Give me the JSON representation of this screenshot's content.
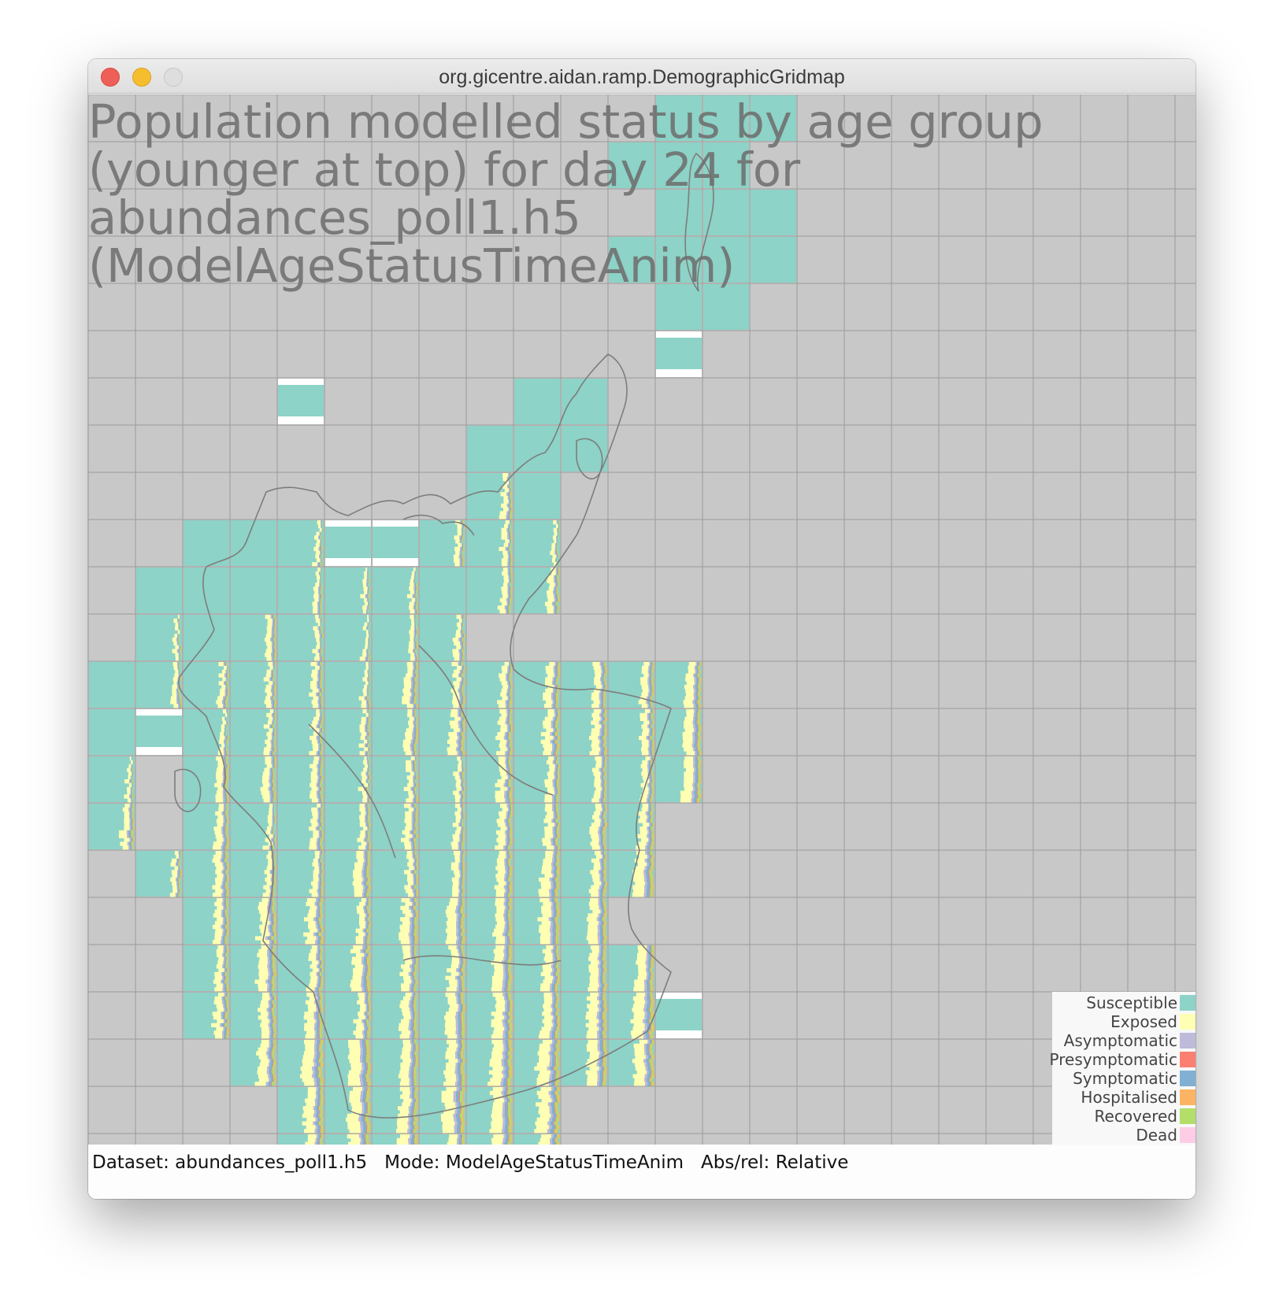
{
  "window": {
    "title": "org.gicentre.aidan.ramp.DemographicGridmap"
  },
  "chart": {
    "title": "Population modelled status by age group (younger at top) for day 24 for abundances_poll1.h5 (ModelAgeStatusTimeAnim)",
    "background_color": "#c8c8c8",
    "legend": [
      {
        "label": "Susceptible",
        "color": "#8dd3c7"
      },
      {
        "label": "Exposed",
        "color": "#ffffb3"
      },
      {
        "label": "Asymptomatic",
        "color": "#bebada"
      },
      {
        "label": "Presymptomatic",
        "color": "#fb8072"
      },
      {
        "label": "Symptomatic",
        "color": "#80b1d3"
      },
      {
        "label": "Hospitalised",
        "color": "#fdb462"
      },
      {
        "label": "Recovered",
        "color": "#b3de69"
      },
      {
        "label": "Dead",
        "color": "#fccde5"
      }
    ]
  },
  "chart_data": {
    "type": "heatmap",
    "grid_columns": 23,
    "grid_rows": 22,
    "populated_cells": [
      [
        0,
        12
      ],
      [
        0,
        13
      ],
      [
        0,
        14
      ],
      [
        1,
        11
      ],
      [
        1,
        12
      ],
      [
        1,
        13
      ],
      [
        2,
        12
      ],
      [
        2,
        13
      ],
      [
        2,
        14
      ],
      [
        3,
        11
      ],
      [
        3,
        12
      ],
      [
        3,
        13
      ],
      [
        3,
        14
      ],
      [
        4,
        12
      ],
      [
        4,
        13
      ],
      [
        5,
        12
      ],
      [
        6,
        4
      ],
      [
        6,
        9
      ],
      [
        6,
        10
      ],
      [
        7,
        8
      ],
      [
        7,
        9
      ],
      [
        7,
        10
      ],
      [
        8,
        8
      ],
      [
        8,
        9
      ],
      [
        9,
        2
      ],
      [
        9,
        3
      ],
      [
        9,
        4
      ],
      [
        9,
        5
      ],
      [
        9,
        6
      ],
      [
        9,
        7
      ],
      [
        9,
        8
      ],
      [
        9,
        9
      ],
      [
        10,
        1
      ],
      [
        10,
        2
      ],
      [
        10,
        3
      ],
      [
        10,
        4
      ],
      [
        10,
        5
      ],
      [
        10,
        6
      ],
      [
        10,
        7
      ],
      [
        10,
        8
      ],
      [
        10,
        9
      ],
      [
        11,
        1
      ],
      [
        11,
        2
      ],
      [
        11,
        3
      ],
      [
        11,
        4
      ],
      [
        11,
        5
      ],
      [
        11,
        6
      ],
      [
        11,
        7
      ],
      [
        12,
        0
      ],
      [
        12,
        1
      ],
      [
        12,
        2
      ],
      [
        12,
        3
      ],
      [
        12,
        4
      ],
      [
        12,
        5
      ],
      [
        12,
        6
      ],
      [
        12,
        7
      ],
      [
        12,
        8
      ],
      [
        12,
        9
      ],
      [
        12,
        10
      ],
      [
        12,
        11
      ],
      [
        12,
        12
      ],
      [
        13,
        0
      ],
      [
        13,
        1
      ],
      [
        13,
        2
      ],
      [
        13,
        3
      ],
      [
        13,
        4
      ],
      [
        13,
        5
      ],
      [
        13,
        6
      ],
      [
        13,
        7
      ],
      [
        13,
        8
      ],
      [
        13,
        9
      ],
      [
        13,
        10
      ],
      [
        13,
        11
      ],
      [
        13,
        12
      ],
      [
        14,
        0
      ],
      [
        14,
        2
      ],
      [
        14,
        3
      ],
      [
        14,
        4
      ],
      [
        14,
        5
      ],
      [
        14,
        6
      ],
      [
        14,
        7
      ],
      [
        14,
        8
      ],
      [
        14,
        9
      ],
      [
        14,
        10
      ],
      [
        14,
        11
      ],
      [
        14,
        12
      ],
      [
        15,
        0
      ],
      [
        15,
        2
      ],
      [
        15,
        3
      ],
      [
        15,
        4
      ],
      [
        15,
        5
      ],
      [
        15,
        6
      ],
      [
        15,
        7
      ],
      [
        15,
        8
      ],
      [
        15,
        9
      ],
      [
        15,
        10
      ],
      [
        15,
        11
      ],
      [
        16,
        1
      ],
      [
        16,
        2
      ],
      [
        16,
        3
      ],
      [
        16,
        4
      ],
      [
        16,
        5
      ],
      [
        16,
        6
      ],
      [
        16,
        7
      ],
      [
        16,
        8
      ],
      [
        16,
        9
      ],
      [
        16,
        10
      ],
      [
        16,
        11
      ],
      [
        17,
        2
      ],
      [
        17,
        3
      ],
      [
        17,
        4
      ],
      [
        17,
        5
      ],
      [
        17,
        6
      ],
      [
        17,
        7
      ],
      [
        17,
        8
      ],
      [
        17,
        9
      ],
      [
        17,
        10
      ],
      [
        18,
        2
      ],
      [
        18,
        3
      ],
      [
        18,
        4
      ],
      [
        18,
        5
      ],
      [
        18,
        6
      ],
      [
        18,
        7
      ],
      [
        18,
        8
      ],
      [
        18,
        9
      ],
      [
        18,
        10
      ],
      [
        18,
        11
      ],
      [
        19,
        2
      ],
      [
        19,
        3
      ],
      [
        19,
        4
      ],
      [
        19,
        5
      ],
      [
        19,
        6
      ],
      [
        19,
        7
      ],
      [
        19,
        8
      ],
      [
        19,
        9
      ],
      [
        19,
        10
      ],
      [
        19,
        11
      ],
      [
        19,
        12
      ],
      [
        20,
        3
      ],
      [
        20,
        4
      ],
      [
        20,
        5
      ],
      [
        20,
        6
      ],
      [
        20,
        7
      ],
      [
        20,
        8
      ],
      [
        20,
        9
      ],
      [
        20,
        10
      ],
      [
        20,
        11
      ],
      [
        21,
        4
      ],
      [
        21,
        5
      ],
      [
        21,
        6
      ],
      [
        21,
        7
      ],
      [
        21,
        8
      ],
      [
        21,
        9
      ],
      [
        22,
        4
      ],
      [
        22,
        5
      ],
      [
        22,
        6
      ],
      [
        22,
        7
      ],
      [
        22,
        8
      ],
      [
        22,
        9
      ]
    ],
    "partial_cells": [
      [
        6,
        4
      ],
      [
        5,
        12
      ],
      [
        9,
        5
      ],
      [
        9,
        6
      ],
      [
        13,
        1
      ],
      [
        19,
        12
      ]
    ],
    "status_categories": [
      "Susceptible",
      "Exposed",
      "Asymptomatic",
      "Presymptomatic",
      "Symptomatic",
      "Hospitalised",
      "Recovered",
      "Dead"
    ]
  },
  "status_bar": {
    "dataset_label": "Dataset:",
    "dataset_value": "abundances_poll1.h5",
    "mode_label": "Mode:",
    "mode_value": "ModelAgeStatusTimeAnim",
    "absrel_label": "Abs/rel:",
    "absrel_value": "Relative"
  }
}
